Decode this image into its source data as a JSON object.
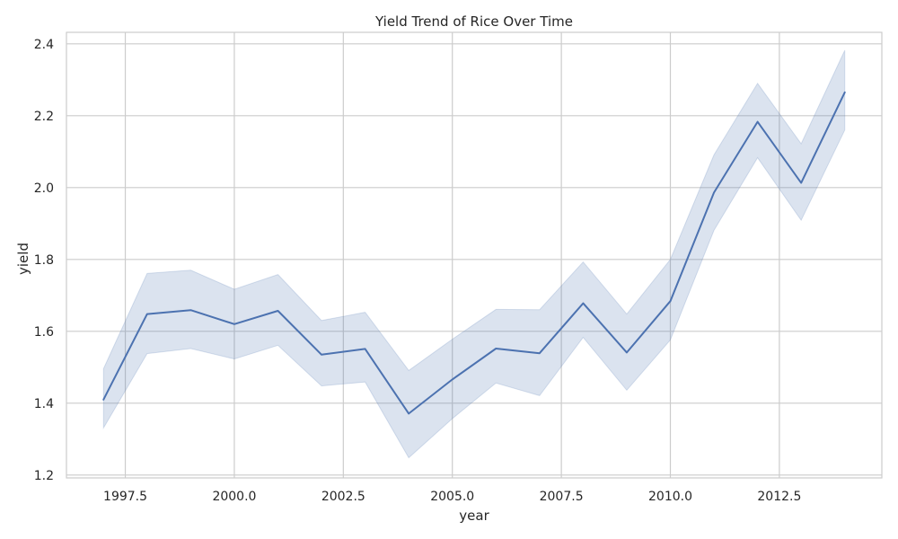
{
  "chart_data": {
    "type": "line",
    "title": "Yield Trend of Rice Over Time",
    "xlabel": "year",
    "ylabel": "yield",
    "xlim": [
      1996.15,
      2014.85
    ],
    "ylim": [
      1.192,
      2.432
    ],
    "xticks": [
      1997.5,
      2000.0,
      2002.5,
      2005.0,
      2007.5,
      2010.0,
      2012.5
    ],
    "xtick_labels": [
      "1997.5",
      "2000.0",
      "2002.5",
      "2005.0",
      "2007.5",
      "2010.0",
      "2012.5"
    ],
    "yticks": [
      1.2,
      1.4,
      1.6,
      1.8,
      2.0,
      2.2,
      2.4
    ],
    "ytick_labels": [
      "1.2",
      "1.4",
      "1.6",
      "1.8",
      "2.0",
      "2.2",
      "2.4"
    ],
    "grid": true,
    "series": [
      {
        "x": [
          1997,
          1998,
          1999,
          2000,
          2001,
          2002,
          2003,
          2004,
          2005,
          2006,
          2007,
          2008,
          2009,
          2010,
          2011,
          2012,
          2013,
          2014
        ],
        "y": [
          1.41,
          1.648,
          1.659,
          1.62,
          1.657,
          1.535,
          1.551,
          1.371,
          1.466,
          1.552,
          1.539,
          1.678,
          1.541,
          1.684,
          1.986,
          2.183,
          2.013,
          2.265
        ],
        "ci_lower": [
          1.331,
          1.538,
          1.552,
          1.523,
          1.561,
          1.448,
          1.459,
          1.248,
          1.357,
          1.456,
          1.421,
          1.583,
          1.436,
          1.576,
          1.881,
          2.083,
          1.909,
          2.16
        ],
        "ci_upper": [
          1.496,
          1.761,
          1.77,
          1.717,
          1.758,
          1.63,
          1.653,
          1.491,
          1.578,
          1.661,
          1.66,
          1.793,
          1.648,
          1.8,
          2.091,
          2.29,
          2.122,
          2.382
        ]
      }
    ],
    "colors": {
      "line": "#4c72b0",
      "band": "#4c72b0",
      "grid": "#cccccc",
      "text": "#262626"
    }
  }
}
